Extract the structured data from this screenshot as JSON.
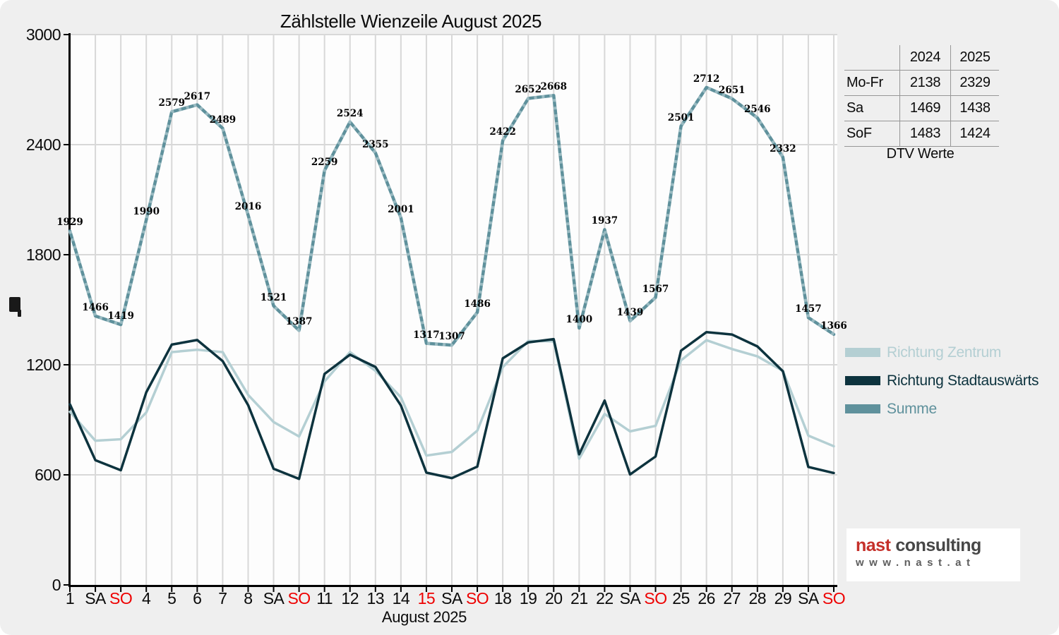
{
  "title": "Zählstelle Wienzeile August 2025",
  "chart_data": {
    "type": "line",
    "title": "Zählstelle Wienzeile August 2025",
    "xlabel": "August 2025",
    "ylabel": "",
    "ylim": [
      0,
      3000
    ],
    "yticks": [
      0,
      600,
      1200,
      1800,
      2400,
      3000
    ],
    "grid": true,
    "legend_position": "right-outside",
    "x_tick_labels": [
      "1",
      "SA",
      "SO",
      "4",
      "5",
      "6",
      "7",
      "8",
      "SA",
      "SO",
      "11",
      "12",
      "13",
      "14",
      "15",
      "SA",
      "SO",
      "18",
      "19",
      "20",
      "21",
      "22",
      "SA",
      "SO",
      "25",
      "26",
      "27",
      "28",
      "29",
      "SA",
      "SO"
    ],
    "holiday_tick_indices": [
      2,
      9,
      14,
      16,
      23,
      30
    ],
    "series": [
      {
        "name": "Richtung Zentrum",
        "color": "#b4cfd3",
        "values": [
          944,
          786,
          794,
          940,
          1269,
          1282,
          1269,
          1036,
          888,
          809,
          1109,
          1269,
          1167,
          1023,
          705,
          725,
          841,
          1187,
          1330,
          1328,
          688,
          932,
          837,
          867,
          1224,
          1334,
          1286,
          1246,
          1167,
          814,
          756
        ]
      },
      {
        "name": "Richtung Stadtauswärts",
        "color": "#0d333e",
        "values": [
          985,
          680,
          625,
          1050,
          1310,
          1335,
          1220,
          980,
          633,
          578,
          1150,
          1255,
          1188,
          978,
          612,
          582,
          645,
          1235,
          1322,
          1340,
          712,
          1005,
          602,
          700,
          1277,
          1378,
          1365,
          1300,
          1165,
          643,
          610
        ]
      },
      {
        "name": "Summe",
        "color": "#5f919c",
        "point_labels": true,
        "values": [
          1929,
          1466,
          1419,
          1990,
          2579,
          2617,
          2489,
          2016,
          1521,
          1387,
          2259,
          2524,
          2355,
          2001,
          1317,
          1307,
          1486,
          2422,
          2652,
          2668,
          1400,
          1937,
          1439,
          1567,
          2501,
          2712,
          2651,
          2546,
          2332,
          1457,
          1366
        ]
      }
    ]
  },
  "table": {
    "col_headers": [
      "2024",
      "2025"
    ],
    "rows": [
      {
        "label": "Mo-Fr",
        "values": [
          "2138",
          "2329"
        ]
      },
      {
        "label": "Sa",
        "values": [
          "1469",
          "1438"
        ]
      },
      {
        "label": "SoF",
        "values": [
          "1483",
          "1424"
        ]
      }
    ],
    "caption": "DTV Werte"
  },
  "legend": {
    "items": [
      {
        "label": "Richtung Zentrum",
        "color": "#b4cfd3"
      },
      {
        "label": "Richtung Stadtauswärts",
        "color": "#0d333e"
      },
      {
        "label": "Summe",
        "color": "#5f919c"
      }
    ]
  },
  "logo": {
    "brand": "nast",
    "suffix": "consulting",
    "url": "www.nast.at"
  },
  "colors": {
    "page_bg": "#efefef",
    "plot_bg": "#fdfdfd",
    "grid": "#d8d8d8",
    "axis": "#000000",
    "holiday_red": "#ee0000"
  }
}
